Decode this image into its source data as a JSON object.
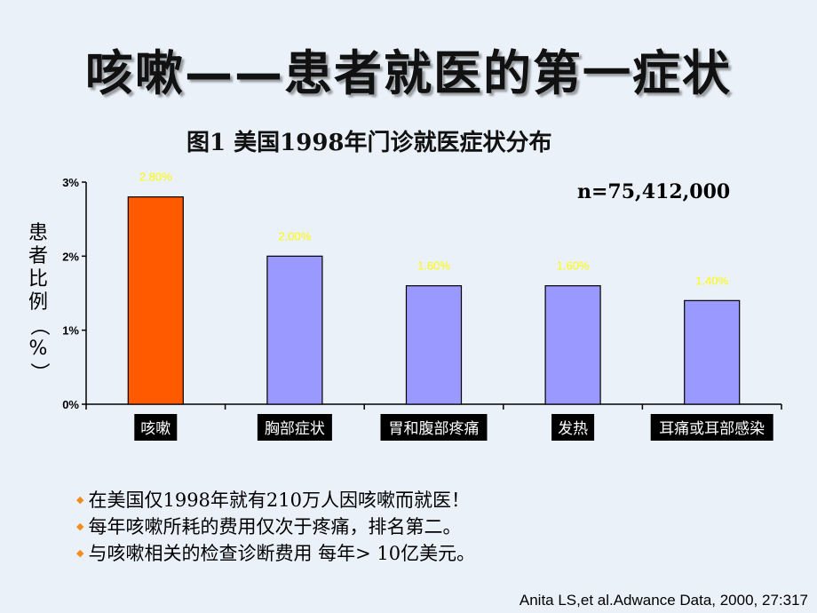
{
  "slide": {
    "title": "咳嗽——患者就医的第一症状",
    "citation": "Anita LS,et al.Adwance Data, 2000, 27:317",
    "bullets": [
      "在美国仅1998年就有210万人因咳嗽而就医！",
      "每年咳嗽所耗的费用仅次于疼痛，排名第二。",
      "与咳嗽相关的检查诊断费用 每年> 10亿美元。"
    ]
  },
  "chart_data": {
    "type": "bar",
    "title": "图1  美国1998年门诊就医症状分布",
    "annotation": "n=75,412,000",
    "ylabel_chars": [
      "患",
      "者",
      "比",
      "例",
      "（",
      "%",
      "）"
    ],
    "categories": [
      "咳嗽",
      "胸部症状",
      "胃和腹部疼痛",
      "发热",
      "耳痛或耳部感染"
    ],
    "values": [
      2.8,
      2.0,
      1.6,
      1.6,
      1.4
    ],
    "data_labels": [
      "2.80%",
      "2.00%",
      "1.60%",
      "1.60%",
      "1.40%"
    ],
    "yticks": [
      0,
      1,
      2,
      3
    ],
    "ytick_labels": [
      "0%",
      "1%",
      "2%",
      "3%"
    ],
    "ylim": [
      0,
      3
    ],
    "grid": false,
    "colors": {
      "highlight": "#ff5a00",
      "bar": "#9999ff",
      "data_label": "#ffff00",
      "category_label_bg": "#000000",
      "category_label_text": "#ffffff"
    }
  }
}
